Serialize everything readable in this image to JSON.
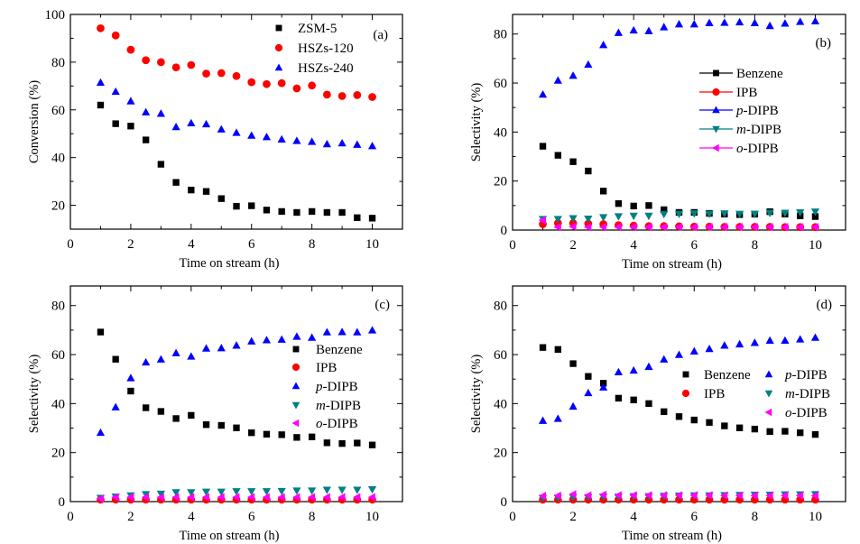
{
  "figure": {
    "panels": [
      "a",
      "b",
      "c",
      "d"
    ]
  },
  "chart_data": [
    {
      "type": "scatter",
      "panel_label": "(a)",
      "title": "",
      "xlabel": "Time on stream (h)",
      "ylabel": "Conversion (%)",
      "xlim": [
        0,
        11
      ],
      "ylim": [
        10,
        100
      ],
      "xticks": [
        0,
        2,
        4,
        6,
        8,
        10
      ],
      "yticks": [
        20,
        40,
        60,
        80,
        100
      ],
      "grid": false,
      "legend_position": "top-right",
      "x": [
        1,
        1.5,
        2,
        2.5,
        3,
        3.5,
        4,
        4.5,
        5,
        5.5,
        6,
        6.5,
        7,
        7.5,
        8,
        8.5,
        9,
        9.5,
        10
      ],
      "series": [
        {
          "name": "ZSM-5",
          "marker": "square",
          "color": "#000000",
          "values": [
            62,
            54.2,
            53.2,
            47.4,
            37.2,
            29.6,
            26.4,
            25.8,
            22.8,
            19.6,
            19.8,
            18,
            17.4,
            17,
            17.4,
            17,
            17,
            14.8,
            14.6
          ]
        },
        {
          "name": "HSZs-120",
          "marker": "circle",
          "color": "#ff0000",
          "values": [
            94.2,
            91.2,
            85.2,
            80.8,
            80,
            77.8,
            78.8,
            75.2,
            75.4,
            74.2,
            71.6,
            70.8,
            71.2,
            69,
            70.2,
            66.4,
            65.8,
            66.2,
            65.4
          ]
        },
        {
          "name": "HSZs-240",
          "marker": "triangle-up",
          "color": "#0000ff",
          "values": [
            71.4,
            67.6,
            63.6,
            59,
            58.4,
            52.8,
            54.4,
            54,
            51.8,
            50.4,
            49.2,
            48.6,
            47.6,
            47,
            46.6,
            45.6,
            46,
            45.4,
            44.8
          ]
        }
      ]
    },
    {
      "type": "scatter",
      "panel_label": "(b)",
      "title": "",
      "xlabel": "Time on stream (h)",
      "ylabel": "Selectivity (%)",
      "xlim": [
        0,
        11
      ],
      "ylim": [
        0,
        88
      ],
      "xticks": [
        0,
        2,
        4,
        6,
        8,
        10
      ],
      "yticks": [
        0,
        20,
        40,
        60,
        80
      ],
      "grid": false,
      "legend_position": "center-right",
      "legend_style": "line-marker",
      "x": [
        1,
        1.5,
        2,
        2.5,
        3,
        3.5,
        4,
        4.5,
        5,
        5.5,
        6,
        6.5,
        7,
        7.5,
        8,
        8.5,
        9,
        9.5,
        10
      ],
      "series": [
        {
          "name": "Benzene",
          "prefix": "",
          "suffix": "Benzene",
          "marker": "square",
          "color": "#000000",
          "values": [
            34.2,
            30.5,
            27.9,
            24.1,
            15.9,
            10.8,
            9.8,
            10,
            8.3,
            7.2,
            7.2,
            6.8,
            6.5,
            6.3,
            6.5,
            7.5,
            6.5,
            5.8,
            5.5
          ]
        },
        {
          "name": "IPB",
          "prefix": "",
          "suffix": "IPB",
          "marker": "circle",
          "color": "#ff0000",
          "values": [
            2.4,
            2.8,
            2.8,
            2.6,
            2.4,
            2.0,
            1.8,
            1.6,
            1.6,
            1.5,
            1.4,
            1.4,
            1.3,
            1.3,
            1.3,
            1.3,
            1.2,
            1.2,
            1.2
          ]
        },
        {
          "name": "p-DIPB",
          "prefix": "p",
          "suffix": "-DIPB",
          "marker": "triangle-up",
          "color": "#0000ff",
          "values": [
            55.3,
            61,
            63,
            67.5,
            75.5,
            80.5,
            81.5,
            81.2,
            82.8,
            84,
            84,
            84.5,
            84.6,
            84.8,
            84.5,
            83.3,
            84.3,
            85,
            85.2
          ]
        },
        {
          "name": "m-DIPB",
          "prefix": "m",
          "suffix": "-DIPB",
          "marker": "triangle-down",
          "color": "#008080",
          "values": [
            4.5,
            4.5,
            4.8,
            4.6,
            5.2,
            5.6,
            5.8,
            5.8,
            6.5,
            6.6,
            6.8,
            6.6,
            6.8,
            6.6,
            6.6,
            7,
            7,
            7.2,
            7.5
          ]
        },
        {
          "name": "o-DIPB",
          "prefix": "o",
          "suffix": "-DIPB",
          "marker": "triangle-left",
          "color": "#ff00ff",
          "values": [
            4,
            1.2,
            1.4,
            1.2,
            1.2,
            1.2,
            1.2,
            1.2,
            1.2,
            1.2,
            1.2,
            1.2,
            1.2,
            1.2,
            1.2,
            1.2,
            1.2,
            1.2,
            1.2
          ]
        }
      ]
    },
    {
      "type": "scatter",
      "panel_label": "(c)",
      "title": "",
      "xlabel": "Time on stream (h)",
      "ylabel": "Selectivity (%)",
      "xlim": [
        0,
        11
      ],
      "ylim": [
        0,
        88
      ],
      "xticks": [
        0,
        2,
        4,
        6,
        8,
        10
      ],
      "yticks": [
        0,
        20,
        40,
        60,
        80
      ],
      "grid": false,
      "legend_position": "center-right",
      "legend_style": "marker",
      "x": [
        1,
        1.5,
        2,
        2.5,
        3,
        3.5,
        4,
        4.5,
        5,
        5.5,
        6,
        6.5,
        7,
        7.5,
        8,
        8.5,
        9,
        9.5,
        10
      ],
      "series": [
        {
          "name": "Benzene",
          "prefix": "",
          "suffix": "Benzene",
          "marker": "square",
          "color": "#000000",
          "values": [
            69.2,
            58.1,
            45.1,
            38.3,
            36.8,
            33.9,
            35.2,
            31.4,
            31.1,
            30.1,
            28.1,
            27.5,
            27.3,
            26.2,
            26.4,
            24.0,
            23.7,
            23.9,
            23.1
          ]
        },
        {
          "name": "IPB",
          "prefix": "",
          "suffix": "IPB",
          "marker": "circle",
          "color": "#ff0000",
          "values": [
            0.8,
            0.8,
            0.8,
            0.8,
            0.8,
            0.8,
            0.8,
            0.8,
            0.8,
            0.8,
            0.8,
            0.8,
            0.8,
            0.8,
            0.8,
            0.8,
            0.8,
            0.8,
            0.8
          ]
        },
        {
          "name": "p-DIPB",
          "prefix": "p",
          "suffix": "-DIPB",
          "marker": "triangle-up",
          "color": "#0000ff",
          "values": [
            28.1,
            38.5,
            50.4,
            56.8,
            58,
            60.6,
            59.2,
            62.5,
            62.6,
            63.7,
            65.4,
            65.9,
            66.1,
            67.3,
            66.9,
            69.1,
            69.2,
            69.1,
            69.9
          ]
        },
        {
          "name": "m-DIPB",
          "prefix": "m",
          "suffix": "-DIPB",
          "marker": "triangle-down",
          "color": "#008080",
          "values": [
            1.5,
            2,
            2.5,
            3,
            3.2,
            3.8,
            3.8,
            4,
            4,
            4.2,
            4.2,
            4.2,
            4.3,
            4.5,
            4.5,
            4.8,
            4.8,
            4.8,
            5
          ]
        },
        {
          "name": "o-DIPB",
          "prefix": "o",
          "suffix": "-DIPB",
          "marker": "triangle-left",
          "color": "#ff00ff",
          "values": [
            1.2,
            1.8,
            1.8,
            1.8,
            1.8,
            1.8,
            1.8,
            1.8,
            1.8,
            1.8,
            1.8,
            1.8,
            1.8,
            1.8,
            1.8,
            1.8,
            1.8,
            1.8,
            1.8
          ]
        }
      ]
    },
    {
      "type": "scatter",
      "panel_label": "(d)",
      "title": "",
      "xlabel": "Time on stream (h)",
      "ylabel": "Selectivity (%)",
      "xlim": [
        0,
        11
      ],
      "ylim": [
        0,
        88
      ],
      "xticks": [
        0,
        2,
        4,
        6,
        8,
        10
      ],
      "yticks": [
        0,
        20,
        40,
        60,
        80
      ],
      "grid": false,
      "legend_position": "center-right (two columns)",
      "legend_style": "marker",
      "x": [
        1,
        1.5,
        2,
        2.5,
        3,
        3.5,
        4,
        4.5,
        5,
        5.5,
        6,
        6.5,
        7,
        7.5,
        8,
        8.5,
        9,
        9.5,
        10
      ],
      "series": [
        {
          "name": "Benzene",
          "prefix": "",
          "suffix": "Benzene",
          "marker": "square",
          "color": "#000000",
          "values": [
            62.9,
            62.1,
            56.3,
            51.1,
            48.3,
            42.2,
            41.5,
            40,
            36.7,
            34.7,
            33.3,
            32.3,
            30.9,
            30.1,
            29.6,
            28.6,
            28.7,
            28.1,
            27.4
          ]
        },
        {
          "name": "IPB",
          "prefix": "",
          "suffix": "IPB",
          "marker": "circle",
          "color": "#ff0000",
          "values": [
            0.8,
            0.8,
            0.8,
            0.8,
            0.8,
            0.8,
            0.8,
            0.8,
            0.8,
            0.8,
            0.8,
            0.8,
            0.8,
            0.8,
            0.8,
            0.8,
            0.8,
            0.8,
            0.8
          ]
        },
        {
          "name": "p-DIPB",
          "prefix": "p",
          "suffix": "-DIPB",
          "marker": "triangle-up",
          "color": "#0000ff",
          "values": [
            33,
            33.8,
            38.8,
            44.3,
            46.6,
            52.8,
            53.5,
            55,
            58,
            59.9,
            61.3,
            62.3,
            63.7,
            64.2,
            64.8,
            65.7,
            65.7,
            66.2,
            66.9
          ]
        },
        {
          "name": "m-DIPB",
          "prefix": "m",
          "suffix": "-DIPB",
          "marker": "triangle-down",
          "color": "#008080",
          "values": [
            1.5,
            1.6,
            1.8,
            1.8,
            2,
            2,
            2.2,
            2.2,
            2.3,
            2.4,
            2.5,
            2.5,
            2.6,
            2.7,
            2.8,
            2.8,
            2.9,
            2.9,
            3
          ]
        },
        {
          "name": "o-DIPB",
          "prefix": "o",
          "suffix": "-DIPB",
          "marker": "triangle-left",
          "color": "#ff00ff",
          "values": [
            2.3,
            2.4,
            3,
            2.5,
            2.8,
            2.6,
            2.6,
            2.6,
            2.6,
            2.6,
            2.6,
            2.6,
            2.5,
            2.5,
            2.5,
            2.5,
            2.5,
            2.5,
            2.4
          ]
        }
      ]
    }
  ]
}
